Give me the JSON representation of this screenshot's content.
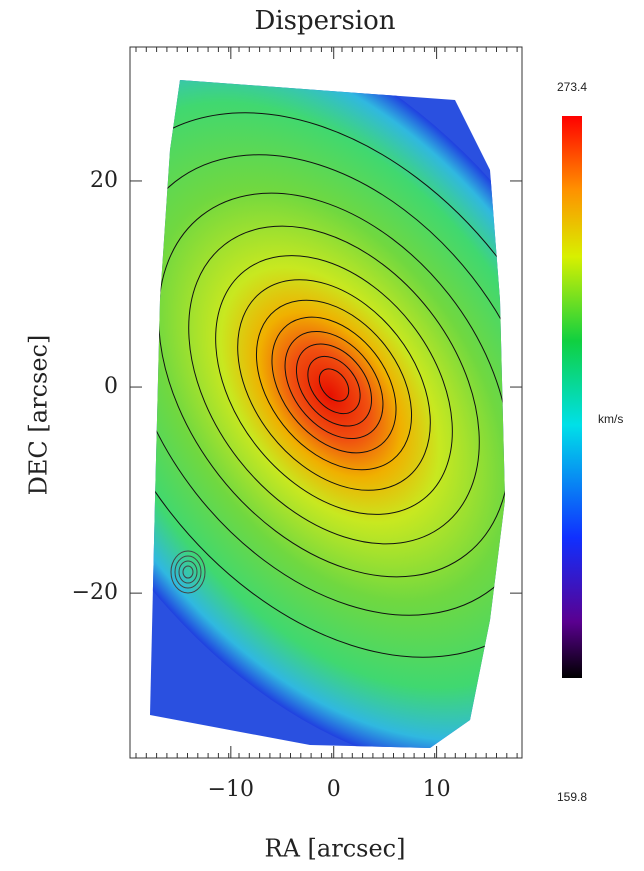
{
  "chart_data": {
    "type": "map",
    "title": "Dispersion",
    "x_label": "RA [arcsec]",
    "y_label": "DEC [arcsec]",
    "xlim": [
      -19.8,
      18.3
    ],
    "ylim": [
      -36,
      33
    ],
    "xticks": [
      {
        "value": -10,
        "label": "−10"
      },
      0,
      10
    ],
    "yticks": [
      {
        "value": -20,
        "label": "−20"
      },
      0,
      20
    ],
    "colorbar": {
      "min": 159.8,
      "max": 273.4,
      "label": "km/s"
    }
  }
}
